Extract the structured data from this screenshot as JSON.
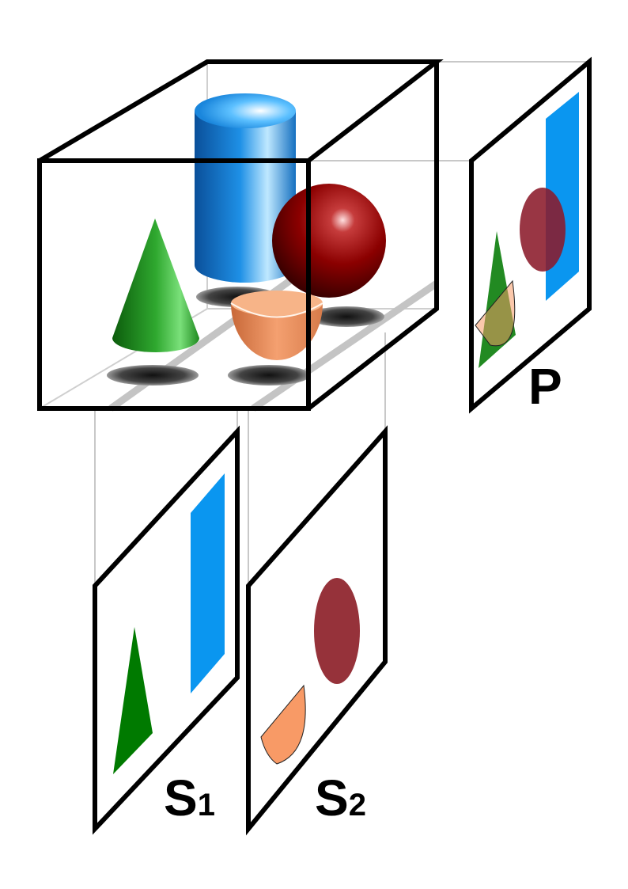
{
  "labels": {
    "projection": "P",
    "slice1_letter": "S",
    "slice1_sub": "1",
    "slice2_letter": "S",
    "slice2_sub": "2"
  },
  "colors": {
    "outline": "#000000",
    "guide_line": "#c8c8c8",
    "floor_stripe": "#bfbfbf",
    "cylinder": "#1e90e6",
    "cylinder_projection": "#0a96f0",
    "sphere": "#8b0000",
    "sphere_projection": "#96323a",
    "cone": "#1fa01f",
    "cone_projection": "#0a7d0a",
    "bowl": "#f4a070",
    "bowl_projection": "#f89a66",
    "shadow": "#222222"
  },
  "icons": {
    "scene_box": "wireframe-cube-icon",
    "cylinder": "cylinder-icon",
    "sphere": "sphere-icon",
    "cone": "cone-icon",
    "bowl": "hemisphere-bowl-icon"
  }
}
